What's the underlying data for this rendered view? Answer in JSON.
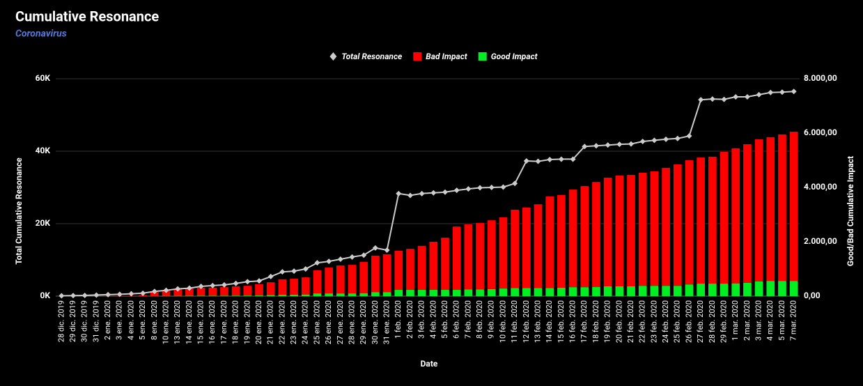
{
  "chart_data": {
    "type": "combo",
    "title": "Cumulative Resonance",
    "subtitle": "Coronavirus",
    "x_label": "Date",
    "y_label": "Total Cumulative Resonance",
    "y2_label": "Good/Bad Cumulative Impact",
    "categories": [
      "28 dic. 2019",
      "29 dic. 2019",
      "30 dic. 2019",
      "31 dic. 2019",
      "2 ene. 2020",
      "3 ene. 2020",
      "4 ene. 2020",
      "5 ene. 2020",
      "8 ene. 2020",
      "10 ene. 2020",
      "13 ene. 2020",
      "14 ene. 2020",
      "15 ene. 2020",
      "16 ene. 2020",
      "17 ene. 2020",
      "18 ene. 2020",
      "19 ene. 2020",
      "20 ene. 2020",
      "21 ene. 2020",
      "22 ene. 2020",
      "23 ene. 2020",
      "24 ene. 2020",
      "25 ene. 2020",
      "26 ene. 2020",
      "27 ene. 2020",
      "28 ene. 2020",
      "29 ene. 2020",
      "30 ene. 2020",
      "31 ene. 2020",
      "1 feb. 2020",
      "2 feb. 2020",
      "3 feb. 2020",
      "4 feb. 2020",
      "5 feb. 2020",
      "6 feb. 2020",
      "7 feb. 2020",
      "8 feb. 2020",
      "9 feb. 2020",
      "10 feb. 2020",
      "11 feb. 2020",
      "12 feb. 2020",
      "13 feb. 2020",
      "14 feb. 2020",
      "15 feb. 2020",
      "16 feb. 2020",
      "17 feb. 2020",
      "18 feb. 2020",
      "19 feb. 2020",
      "20 feb. 2020",
      "21 feb. 2020",
      "22 feb. 2020",
      "23 feb. 2020",
      "24 feb. 2020",
      "25 feb. 2020",
      "26 feb. 2020",
      "27 feb. 2020",
      "28 feb. 2020",
      "29 feb. 2020",
      "1 mar. 2020",
      "2 mar. 2020",
      "3 mar. 2020",
      "4 mar. 2020",
      "5 mar. 2020",
      "7 mar. 2020"
    ],
    "series": [
      {
        "name": "Total Resonance",
        "type": "line",
        "axis": "y",
        "color": "#cccccc",
        "values": [
          100,
          150,
          200,
          300,
          400,
          500,
          650,
          800,
          1300,
          1600,
          2000,
          2200,
          2700,
          2900,
          3100,
          3500,
          4000,
          4200,
          5400,
          6700,
          6900,
          7500,
          9200,
          9600,
          10200,
          10800,
          11300,
          13300,
          12700,
          28300,
          27800,
          28300,
          28500,
          28700,
          29200,
          29600,
          29900,
          30000,
          30100,
          31100,
          37300,
          37200,
          37700,
          37800,
          37800,
          41300,
          41500,
          41700,
          41900,
          42000,
          42700,
          43000,
          43300,
          43500,
          44200,
          54200,
          54400,
          54300,
          55000,
          55000,
          55600,
          56200,
          56300,
          56500
        ]
      },
      {
        "name": "Bad Impact",
        "type": "bar",
        "axis": "y2",
        "color": "#ff0000",
        "values": [
          0,
          0,
          0,
          0,
          5,
          10,
          14,
          38,
          145,
          192,
          250,
          268,
          296,
          295,
          313,
          340,
          358,
          415,
          470,
          570,
          585,
          630,
          850,
          950,
          1030,
          1050,
          1150,
          1340,
          1390,
          1440,
          1510,
          1620,
          1770,
          1920,
          2330,
          2390,
          2440,
          2530,
          2620,
          2880,
          2960,
          3080,
          3370,
          3410,
          3590,
          3720,
          3860,
          4000,
          4080,
          4100,
          4160,
          4210,
          4340,
          4470,
          4570,
          4640,
          4670,
          4850,
          4970,
          5100,
          5230,
          5290,
          5390,
          5490
        ]
      },
      {
        "name": "Good Impact",
        "type": "bar",
        "axis": "y2",
        "color": "#00ee22",
        "values": [
          0,
          0,
          0,
          0,
          0,
          0,
          1,
          2,
          5,
          8,
          10,
          12,
          14,
          15,
          17,
          20,
          22,
          25,
          40,
          50,
          55,
          60,
          100,
          100,
          100,
          100,
          110,
          150,
          150,
          230,
          230,
          230,
          230,
          230,
          230,
          250,
          250,
          260,
          280,
          300,
          300,
          300,
          300,
          310,
          330,
          330,
          340,
          360,
          360,
          360,
          380,
          380,
          380,
          380,
          430,
          460,
          460,
          460,
          470,
          490,
          540,
          560,
          560,
          560
        ]
      }
    ],
    "ylim": [
      0,
      60000
    ],
    "yticks": [
      {
        "value": 0,
        "label": "0K"
      },
      {
        "value": 20000,
        "label": "20K"
      },
      {
        "value": 40000,
        "label": "40K"
      },
      {
        "value": 60000,
        "label": "60K"
      }
    ],
    "y2lim": [
      0,
      8000
    ],
    "y2ticks": [
      {
        "value": 0,
        "label": "0,00"
      },
      {
        "value": 2000,
        "label": "2.000,00"
      },
      {
        "value": 4000,
        "label": "4.000,00"
      },
      {
        "value": 6000,
        "label": "6.000,00"
      },
      {
        "value": 8000,
        "label": "8.000,00"
      }
    ],
    "grid": true,
    "legend": "top"
  }
}
